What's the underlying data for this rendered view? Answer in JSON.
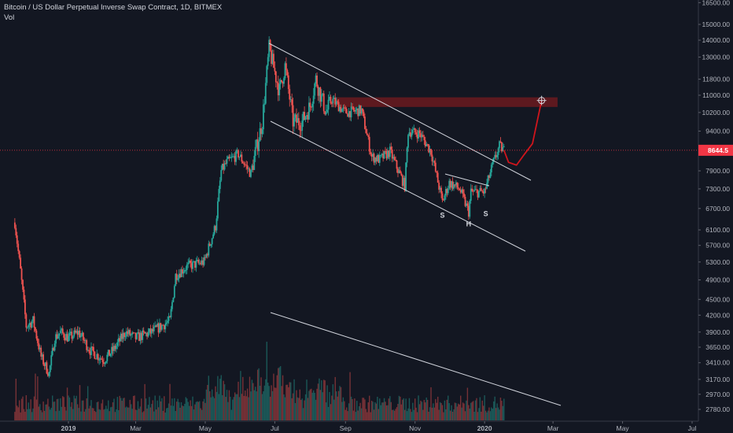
{
  "legend": {
    "title": "Bitcoin / US Dollar Perpetual Inverse Swap Contract, 1D, BITMEX",
    "volume_label": "Vol"
  },
  "colors": {
    "background": "#131722",
    "up": "#26a69a",
    "down": "#ef5350",
    "price_line": "#f23645",
    "resistance_zone": "#6b1a1f",
    "projection": "#d0151c",
    "trendline": "#d1d4dc"
  },
  "chart_data": {
    "type": "candlestick",
    "title": "Bitcoin / US Dollar Perpetual Inverse Swap Contract, 1D, BITMEX",
    "y_scale": "log",
    "ylim": [
      2700,
      16800
    ],
    "y_ticks": [
      "16500.00",
      "15000.00",
      "14000.00",
      "13000.00",
      "11800.00",
      "11000.00",
      "10200.00",
      "9400.00",
      "7900.00",
      "7300.00",
      "6700.00",
      "6100.00",
      "5700.00",
      "5300.00",
      "4900.00",
      "4500.00",
      "4200.00",
      "3900.00",
      "3650.00",
      "3410.00",
      "3170.00",
      "2970.00",
      "2780.00"
    ],
    "x_ticks": [
      "2019",
      "Mar",
      "May",
      "Jul",
      "Sep",
      "Nov",
      "2020",
      "Mar",
      "May",
      "Jul"
    ],
    "last_price": 8644.5,
    "last_price_label": "8644.5",
    "price_path": [
      [
        "2018-11-15",
        6300
      ],
      [
        "2018-11-20",
        5100
      ],
      [
        "2018-11-25",
        4000
      ],
      [
        "2018-12-01",
        4100
      ],
      [
        "2018-12-08",
        3500
      ],
      [
        "2018-12-15",
        3250
      ],
      [
        "2018-12-20",
        3800
      ],
      [
        "2018-12-25",
        3900
      ],
      [
        "2019-01-01",
        3800
      ],
      [
        "2019-01-10",
        3900
      ],
      [
        "2019-01-20",
        3600
      ],
      [
        "2019-02-01",
        3450
      ],
      [
        "2019-02-10",
        3620
      ],
      [
        "2019-02-20",
        3900
      ],
      [
        "2019-03-01",
        3800
      ],
      [
        "2019-03-15",
        3900
      ],
      [
        "2019-03-31",
        4100
      ],
      [
        "2019-04-05",
        5000
      ],
      [
        "2019-04-15",
        5200
      ],
      [
        "2019-04-30",
        5300
      ],
      [
        "2019-05-10",
        6200
      ],
      [
        "2019-05-15",
        7900
      ],
      [
        "2019-05-20",
        8200
      ],
      [
        "2019-05-30",
        8500
      ],
      [
        "2019-06-10",
        7800
      ],
      [
        "2019-06-20",
        9800
      ],
      [
        "2019-06-26",
        13500
      ],
      [
        "2019-07-05",
        11200
      ],
      [
        "2019-07-10",
        12500
      ],
      [
        "2019-07-17",
        9800
      ],
      [
        "2019-07-25",
        9800
      ],
      [
        "2019-08-01",
        10500
      ],
      [
        "2019-08-06",
        11800
      ],
      [
        "2019-08-15",
        10200
      ],
      [
        "2019-08-20",
        10800
      ],
      [
        "2019-09-01",
        10200
      ],
      [
        "2019-09-15",
        10300
      ],
      [
        "2019-09-24",
        8400
      ],
      [
        "2019-10-01",
        8300
      ],
      [
        "2019-10-10",
        8600
      ],
      [
        "2019-10-23",
        7400
      ],
      [
        "2019-10-26",
        9400
      ],
      [
        "2019-11-05",
        9300
      ],
      [
        "2019-11-15",
        8600
      ],
      [
        "2019-11-25",
        6900
      ],
      [
        "2019-12-01",
        7500
      ],
      [
        "2019-12-10",
        7300
      ],
      [
        "2019-12-18",
        6600
      ],
      [
        "2019-12-20",
        7200
      ],
      [
        "2020-01-01",
        7200
      ],
      [
        "2020-01-08",
        8100
      ],
      [
        "2020-01-14",
        8800
      ],
      [
        "2020-01-18",
        8644.5
      ]
    ],
    "annotations": [
      {
        "label": "S",
        "date": "2019-11-25",
        "price": 6800
      },
      {
        "label": "H",
        "date": "2019-12-18",
        "price": 6550
      },
      {
        "label": "S",
        "date": "2020-01-02",
        "price": 6850
      }
    ],
    "resistance_zone": {
      "from": "2019-08-20",
      "to": "2020-03-05",
      "low": 10450,
      "high": 10900
    },
    "projection_path": [
      [
        "2020-01-18",
        8644.5
      ],
      [
        "2020-01-22",
        8200
      ],
      [
        "2020-01-29",
        8100
      ],
      [
        "2020-02-05",
        8500
      ],
      [
        "2020-02-12",
        8900
      ],
      [
        "2020-02-20",
        10750
      ]
    ],
    "projection_target": {
      "date": "2020-02-20",
      "price": 10750
    }
  }
}
